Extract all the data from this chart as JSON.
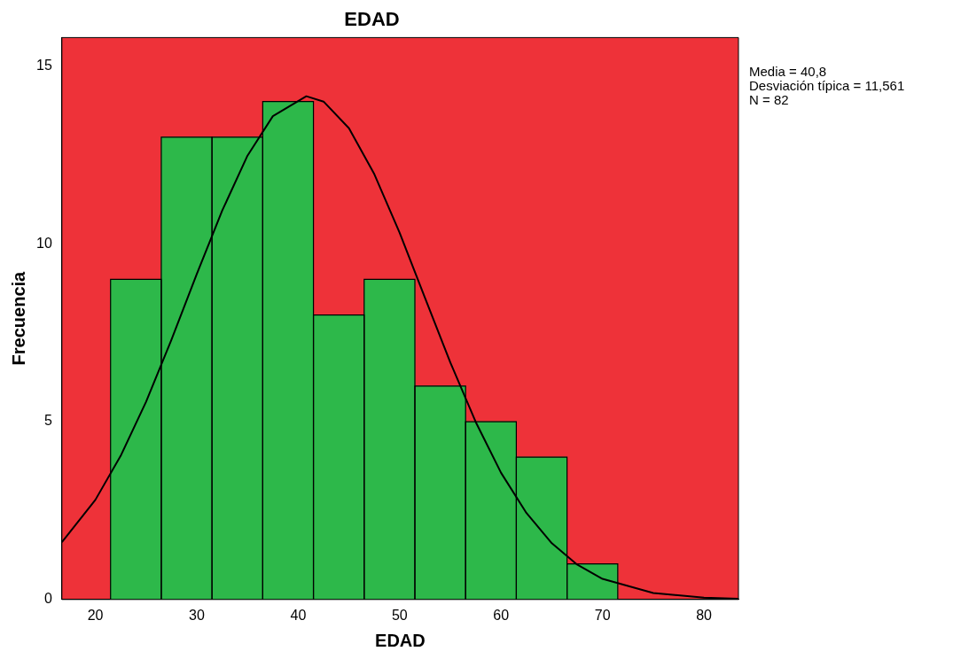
{
  "chart_data": {
    "type": "histogram",
    "title": "EDAD",
    "xlabel": "EDAD",
    "ylabel": "Frecuencia",
    "bins": [
      21.5,
      26.5,
      31.5,
      36.5,
      41.5,
      46.5,
      51.5,
      56.5,
      61.5,
      66.5,
      71.5
    ],
    "series": [
      {
        "color": "#2db84a",
        "values": [
          9,
          13,
          13,
          14,
          8,
          9,
          6,
          5,
          4,
          1
        ]
      },
      {
        "type": "line",
        "color": "#000000",
        "x": [
          16.7,
          20,
          22.5,
          25,
          27.5,
          30,
          32.5,
          35,
          37.5,
          40.8,
          42.5,
          45,
          47.5,
          50,
          52.5,
          55,
          57.5,
          60,
          62.5,
          65,
          67.5,
          70,
          75,
          80,
          83.4
        ],
        "values": [
          1.61,
          2.8,
          4.04,
          5.56,
          7.3,
          9.15,
          10.93,
          12.48,
          13.59,
          14.15,
          14.0,
          13.25,
          11.96,
          10.31,
          8.48,
          6.66,
          4.99,
          3.56,
          2.43,
          1.58,
          0.98,
          0.58,
          0.18,
          0.05,
          0.02
        ]
      }
    ],
    "xlim": [
      16.7,
      83.4
    ],
    "xticks": [
      20,
      30,
      40,
      50,
      60,
      70,
      80
    ],
    "ylim": [
      0,
      15.8
    ],
    "yticks": [
      0,
      5,
      10,
      15
    ],
    "grid": false,
    "legend": false,
    "marker": "none",
    "line_style": "solid",
    "annotations": [
      "Media = 40,8",
      "Desviación típica = 11,561",
      "N = 82"
    ]
  }
}
